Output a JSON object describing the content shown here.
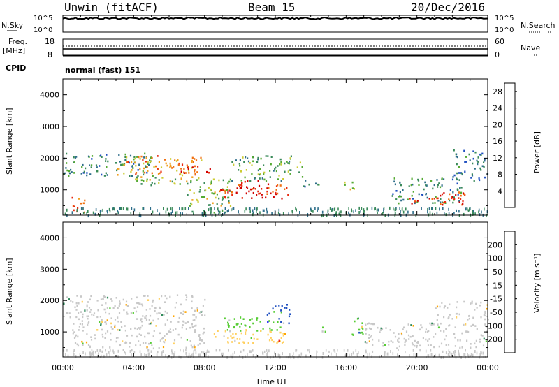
{
  "header": {
    "station": "Unwin (fitACF)",
    "beam": "Beam 15",
    "date": "20/Dec/2016"
  },
  "top_panels": {
    "nsky_label": "N.Sky",
    "nsky_ticks": [
      "10^5",
      "10^0"
    ],
    "nsearch_label": "N.Search",
    "nsearch_ticks": [
      "10^5",
      "10^0"
    ],
    "freq_label": "Freq.",
    "freq_unit": "[MHz]",
    "freq_ticks": [
      "18",
      "8"
    ],
    "nave_label": "Nave",
    "nave_ticks": [
      "60",
      "0"
    ],
    "cpid_label": "CPID",
    "cpid_value": "normal (fast) 151"
  },
  "colors": {
    "power_scale": [
      "#1a1aff",
      "#1f4fc0",
      "#2e6e8a",
      "#3a8a5a",
      "#55aa33",
      "#cccc33",
      "#f0a020",
      "#f07010",
      "#e82a10",
      "#d00000"
    ],
    "velocity_scale": [
      "#ee0000",
      "#ff5a00",
      "#ffa500",
      "#ffd060",
      "#c8c8c8",
      "#c8c8c8",
      "#55cc33",
      "#2e8a5a",
      "#1f4fc0",
      "#1010ff"
    ]
  },
  "chart_data": [
    {
      "type": "heatmap",
      "title": "Power",
      "ylabel": "Slant Range [km]",
      "xlabel": "Time UT",
      "x_ticks": [
        "00:00",
        "04:00",
        "08:00",
        "12:00",
        "16:00",
        "20:00",
        "00:00"
      ],
      "y_ticks": [
        "1000",
        "2000",
        "3000",
        "4000"
      ],
      "ylim": [
        200,
        4500
      ],
      "xlim_hours": [
        0,
        24
      ],
      "colorbar": {
        "label": "Power [dB]",
        "ticks": [
          "4",
          "8",
          "12",
          "16",
          "20",
          "24",
          "28"
        ],
        "range": [
          0,
          30
        ]
      },
      "echo_regions": [
        {
          "t0": 0.2,
          "t1": 1.2,
          "r0": 300,
          "r1": 800,
          "power": 22
        },
        {
          "t0": 0.0,
          "t1": 5.0,
          "r0": 1450,
          "r1": 2200,
          "power": 10
        },
        {
          "t0": 3.0,
          "t1": 7.8,
          "r0": 1500,
          "r1": 2100,
          "power": 20
        },
        {
          "t0": 5.0,
          "t1": 8.5,
          "r0": 1550,
          "r1": 1800,
          "power": 27
        },
        {
          "t0": 4.0,
          "t1": 7.5,
          "r0": 1150,
          "r1": 1500,
          "power": 14
        },
        {
          "t0": 7.0,
          "t1": 9.5,
          "r0": 300,
          "r1": 1400,
          "power": 14
        },
        {
          "t0": 8.8,
          "t1": 12.8,
          "r0": 750,
          "r1": 1200,
          "power": 26
        },
        {
          "t0": 10.0,
          "t1": 11.8,
          "r0": 900,
          "r1": 1350,
          "power": 29
        },
        {
          "t0": 9.5,
          "t1": 13.5,
          "r0": 1300,
          "r1": 2100,
          "power": 12
        },
        {
          "t0": 13.5,
          "t1": 14.5,
          "r0": 1100,
          "r1": 1400,
          "power": 8
        },
        {
          "t0": 15.8,
          "t1": 16.5,
          "r0": 950,
          "r1": 1300,
          "power": 18
        },
        {
          "t0": 18.5,
          "t1": 22.5,
          "r0": 600,
          "r1": 1400,
          "power": 10
        },
        {
          "t0": 19.5,
          "t1": 23.0,
          "r0": 550,
          "r1": 950,
          "power": 26
        },
        {
          "t0": 22.0,
          "t1": 24.0,
          "r0": 1300,
          "r1": 2300,
          "power": 8
        }
      ]
    },
    {
      "type": "heatmap",
      "title": "Velocity",
      "ylabel": "Slant Range [km]",
      "xlabel": "Time UT",
      "x_ticks": [
        "00:00",
        "04:00",
        "08:00",
        "12:00",
        "16:00",
        "20:00",
        "00:00"
      ],
      "y_ticks": [
        "1000",
        "2000",
        "3000",
        "4000"
      ],
      "ylim": [
        200,
        4500
      ],
      "xlim_hours": [
        0,
        24
      ],
      "colorbar": {
        "label": "Velocity [m s⁻¹]",
        "ticks": [
          "200",
          "100",
          "50",
          "15",
          "-15",
          "-50",
          "-100",
          "-200"
        ],
        "range": [
          -250,
          250
        ]
      },
      "echo_regions": [
        {
          "t0": 0.0,
          "t1": 8.0,
          "r0": 1400,
          "r1": 2200,
          "velocity": 0
        },
        {
          "t0": 0.5,
          "t1": 8.0,
          "r0": 500,
          "r1": 1400,
          "velocity": 0
        },
        {
          "t0": 8.5,
          "t1": 13.0,
          "r0": 650,
          "r1": 1100,
          "velocity": -60
        },
        {
          "t0": 9.0,
          "t1": 12.5,
          "r0": 1050,
          "r1": 1500,
          "velocity": 60
        },
        {
          "t0": 11.5,
          "t1": 12.8,
          "r0": 1300,
          "r1": 1900,
          "velocity": 180
        },
        {
          "t0": 14.5,
          "t1": 15.0,
          "r0": 1000,
          "r1": 1300,
          "velocity": 60
        },
        {
          "t0": 16.0,
          "t1": 17.0,
          "r0": 900,
          "r1": 1500,
          "velocity": 60
        },
        {
          "t0": 17.0,
          "t1": 24.0,
          "r0": 500,
          "r1": 1300,
          "velocity": 0
        },
        {
          "t0": 21.0,
          "t1": 24.0,
          "r0": 1400,
          "r1": 2000,
          "velocity": 0
        }
      ]
    }
  ]
}
